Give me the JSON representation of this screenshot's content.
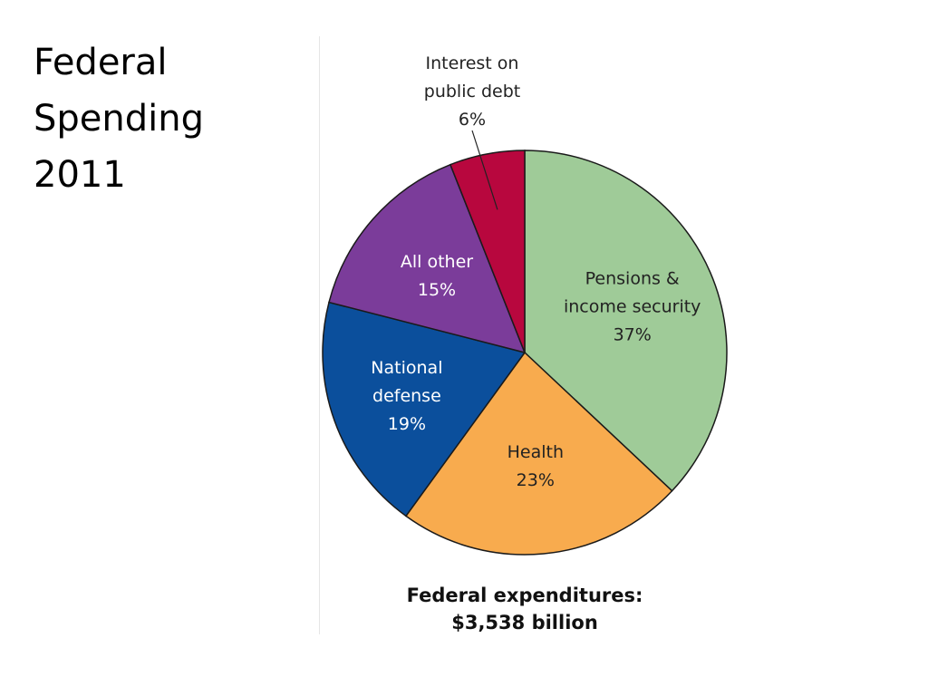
{
  "slide": {
    "title_lines": [
      "Federal",
      "Spending",
      "2011"
    ]
  },
  "chart_data": {
    "type": "pie",
    "title": "",
    "total_label_lines": [
      "Federal expenditures:",
      "$3,538 billion"
    ],
    "slices": [
      {
        "name": "Pensions & income security",
        "label_lines": [
          "Pensions &",
          "income security",
          "37%"
        ],
        "value": 37,
        "color": "#9fcb98",
        "label_color": "#222222"
      },
      {
        "name": "Health",
        "label_lines": [
          "Health",
          "23%"
        ],
        "value": 23,
        "color": "#f8ab4e",
        "label_color": "#222222"
      },
      {
        "name": "National defense",
        "label_lines": [
          "National",
          "defense",
          "19%"
        ],
        "value": 19,
        "color": "#0b4f9c",
        "label_color": "#ffffff"
      },
      {
        "name": "All other",
        "label_lines": [
          "All other",
          "15%"
        ],
        "value": 15,
        "color": "#7b3c9a",
        "label_color": "#ffffff"
      },
      {
        "name": "Interest on public debt",
        "label_lines": [
          "Interest on",
          "public debt",
          "6%"
        ],
        "value": 6,
        "color": "#b8073e",
        "label_color": "#222222",
        "outside_label": true
      }
    ]
  }
}
